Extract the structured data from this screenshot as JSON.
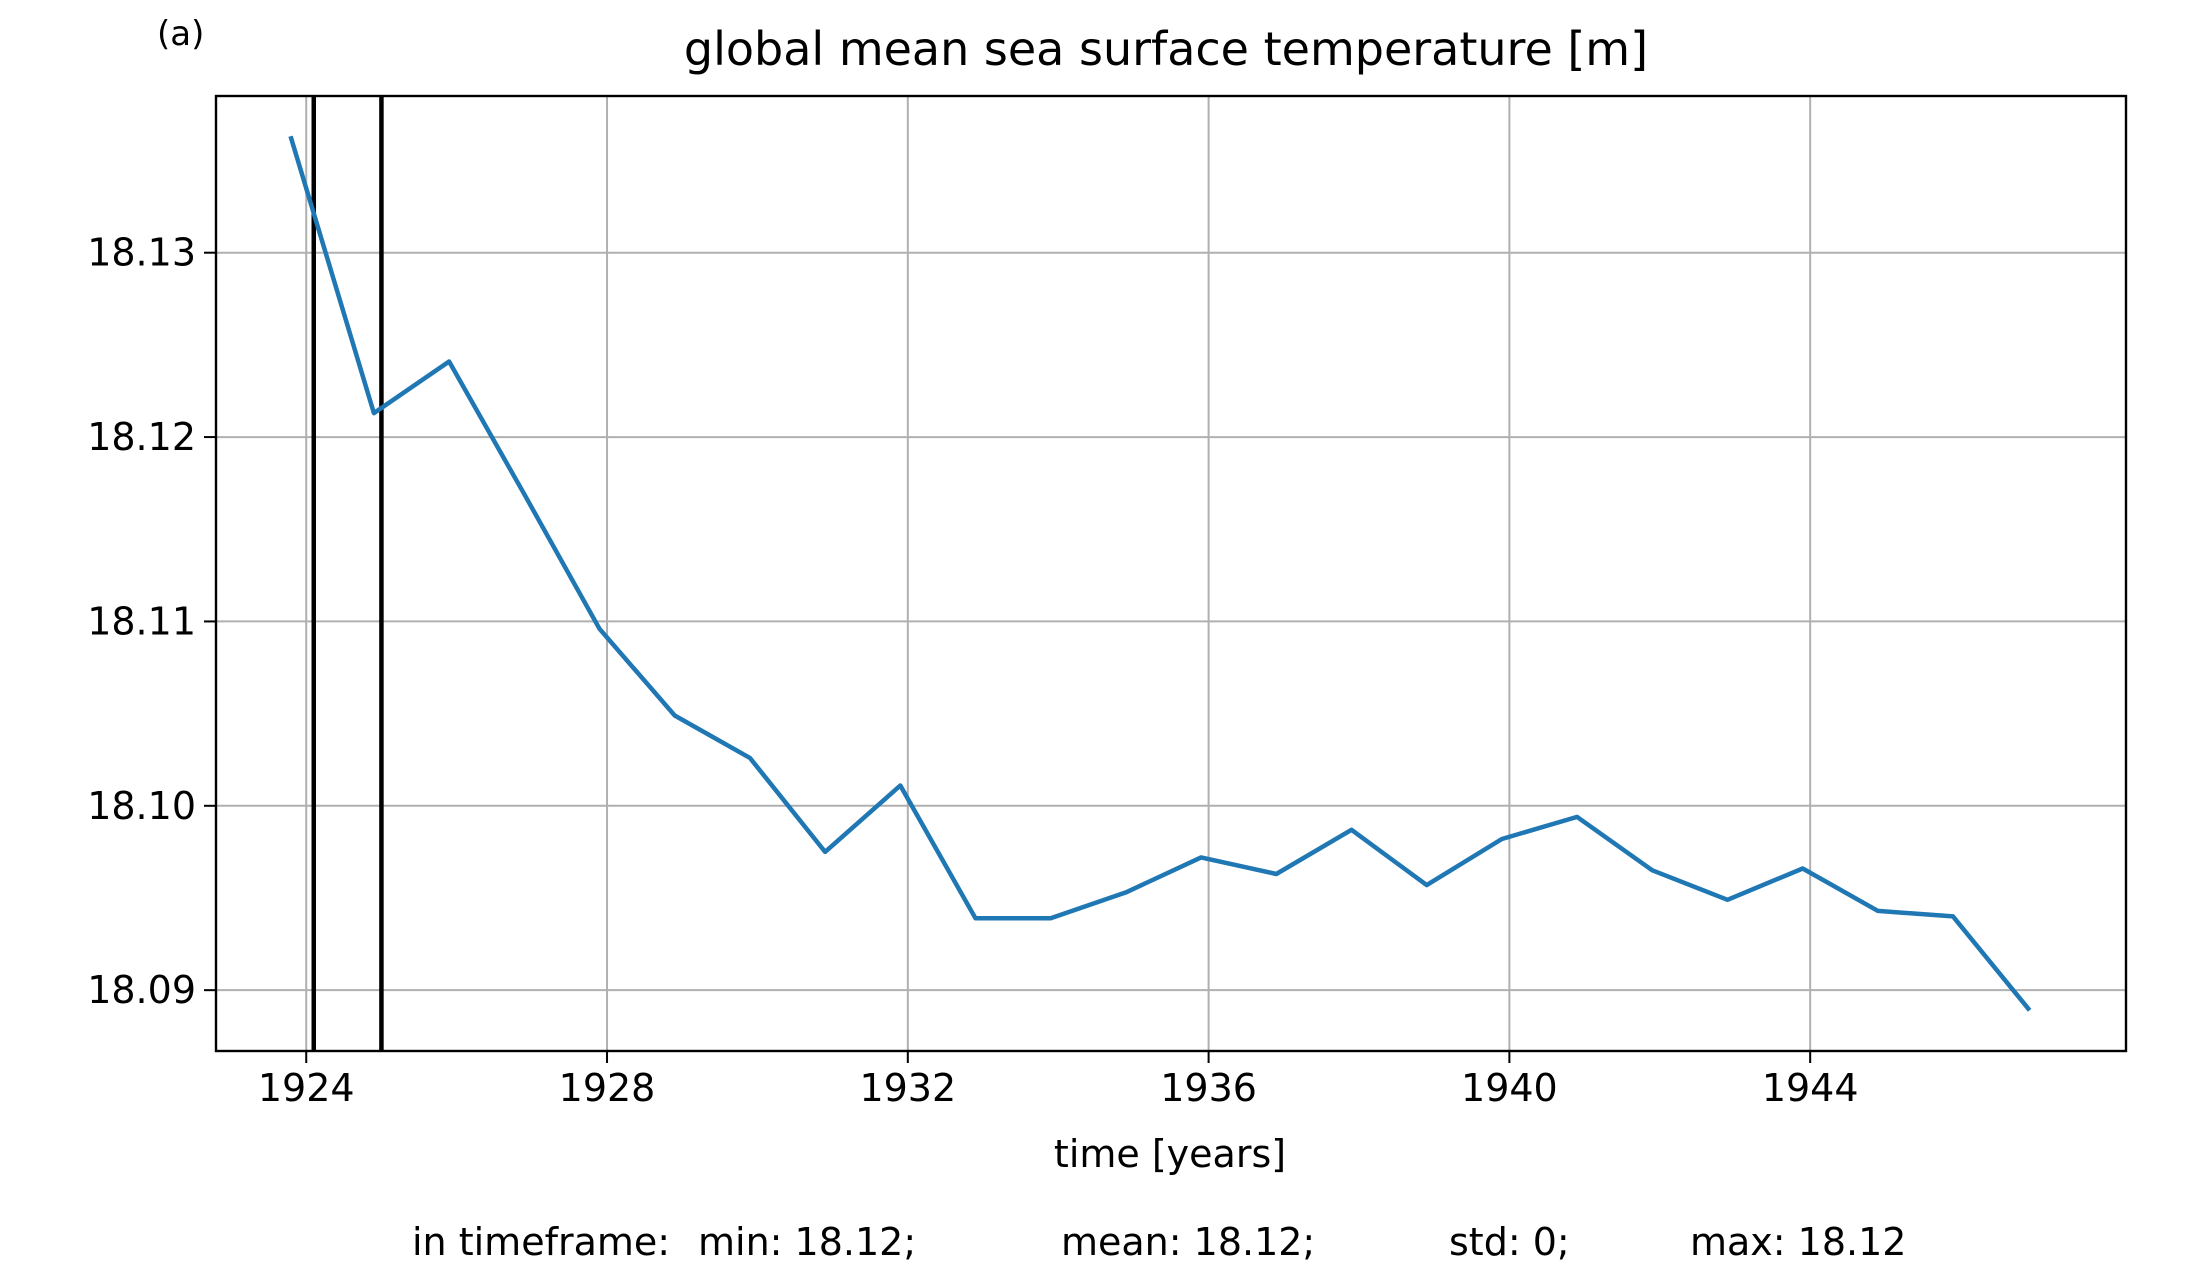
{
  "panel_label": "(a)",
  "chart_data": {
    "type": "line",
    "title": "global mean sea surface temperature [m]",
    "xlabel": "time [years]",
    "ylabel": "",
    "xlim": [
      1922.8,
      1948.2
    ],
    "ylim": [
      18.0867,
      18.1385
    ],
    "x_ticks": [
      1924,
      1928,
      1932,
      1936,
      1940,
      1944
    ],
    "y_ticks": [
      18.09,
      18.1,
      18.11,
      18.12,
      18.13
    ],
    "y_tick_labels": [
      "18.09",
      "18.10",
      "18.11",
      "18.12",
      "18.13"
    ],
    "grid": true,
    "line_color": "#1f77b4",
    "grid_color": "#b0b0b0",
    "vertical_lines": [
      1924.1,
      1925.0
    ],
    "vertical_line_color": "#000000",
    "series": [
      {
        "x": [
          1923.8,
          1924.9,
          1925.9,
          1926.9,
          1927.9,
          1928.9,
          1929.9,
          1930.9,
          1931.9,
          1932.9,
          1933.9,
          1934.9,
          1935.9,
          1936.9,
          1937.9,
          1938.9,
          1939.9,
          1940.9,
          1941.9,
          1942.9,
          1943.9,
          1944.9,
          1945.9,
          1946.9
        ],
        "y": [
          18.1362,
          18.1213,
          18.1241,
          18.1169,
          18.1096,
          18.1049,
          18.1026,
          18.0975,
          18.1011,
          18.0939,
          18.0939,
          18.0953,
          18.0972,
          18.0963,
          18.0987,
          18.0957,
          18.0982,
          18.0994,
          18.0965,
          18.0949,
          18.0966,
          18.0943,
          18.094,
          18.089
        ]
      }
    ],
    "stats": {
      "prefix": "in timeframe:",
      "min": "min: 18.12;",
      "mean": "mean: 18.12;",
      "std": "std: 0;",
      "max": "max: 18.12"
    }
  }
}
